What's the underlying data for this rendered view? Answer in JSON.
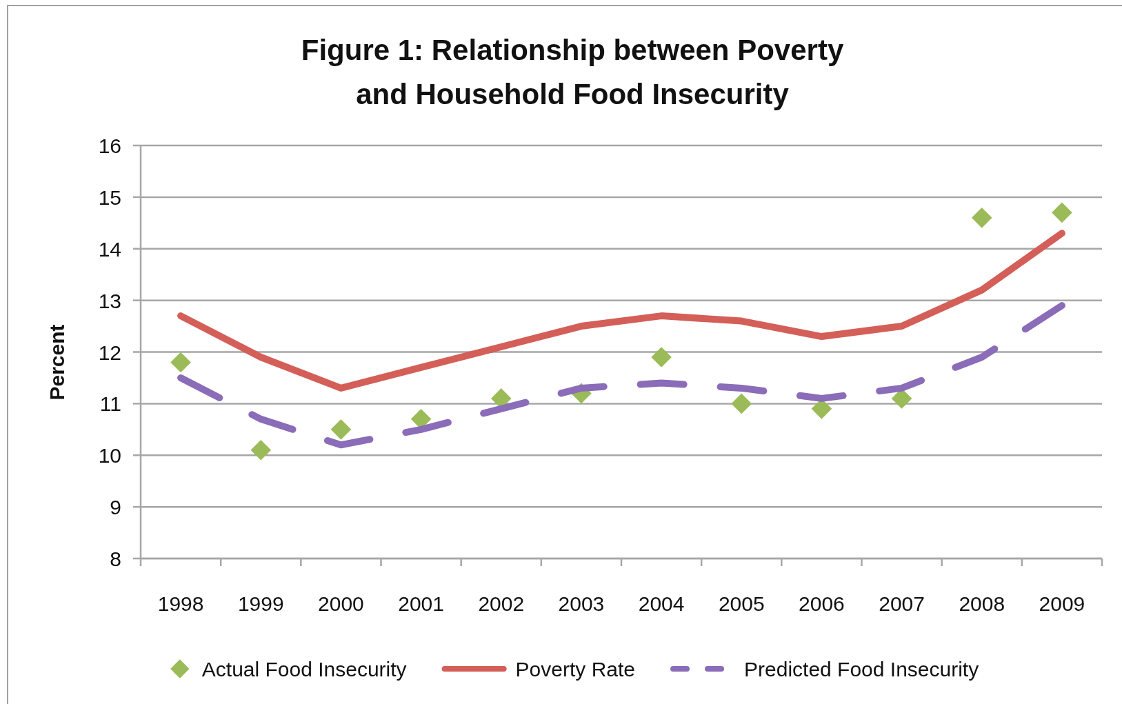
{
  "chart_data": {
    "type": "line",
    "title": "Figure 1: Relationship between Poverty and Household Food Insecurity",
    "ylabel": "Percent",
    "categories": [
      "1998",
      "1999",
      "2000",
      "2001",
      "2002",
      "2003",
      "2004",
      "2005",
      "2006",
      "2007",
      "2008",
      "2009"
    ],
    "series": [
      {
        "name": "Actual Food Insecurity",
        "type": "scatter",
        "marker": "diamond",
        "color": "#9bbb59",
        "values": [
          11.8,
          10.1,
          10.5,
          10.7,
          11.1,
          11.2,
          11.9,
          11.0,
          10.9,
          11.1,
          14.6,
          14.7
        ]
      },
      {
        "name": "Poverty Rate",
        "type": "line",
        "line_style": "solid",
        "color": "#d35f58",
        "values": [
          12.7,
          11.9,
          11.3,
          11.7,
          12.1,
          12.5,
          12.7,
          12.6,
          12.3,
          12.5,
          13.2,
          14.3
        ]
      },
      {
        "name": "Predicted Food Insecurity",
        "type": "line",
        "line_style": "dashed",
        "color": "#8a6cb8",
        "values": [
          11.5,
          10.7,
          10.2,
          10.5,
          10.9,
          11.3,
          11.4,
          11.3,
          11.1,
          11.3,
          11.9,
          12.9
        ]
      }
    ],
    "ylim": [
      8,
      16
    ],
    "yticks": [
      8,
      9,
      10,
      11,
      12,
      13,
      14,
      15,
      16
    ],
    "grid": "y",
    "legend": "bottom"
  }
}
